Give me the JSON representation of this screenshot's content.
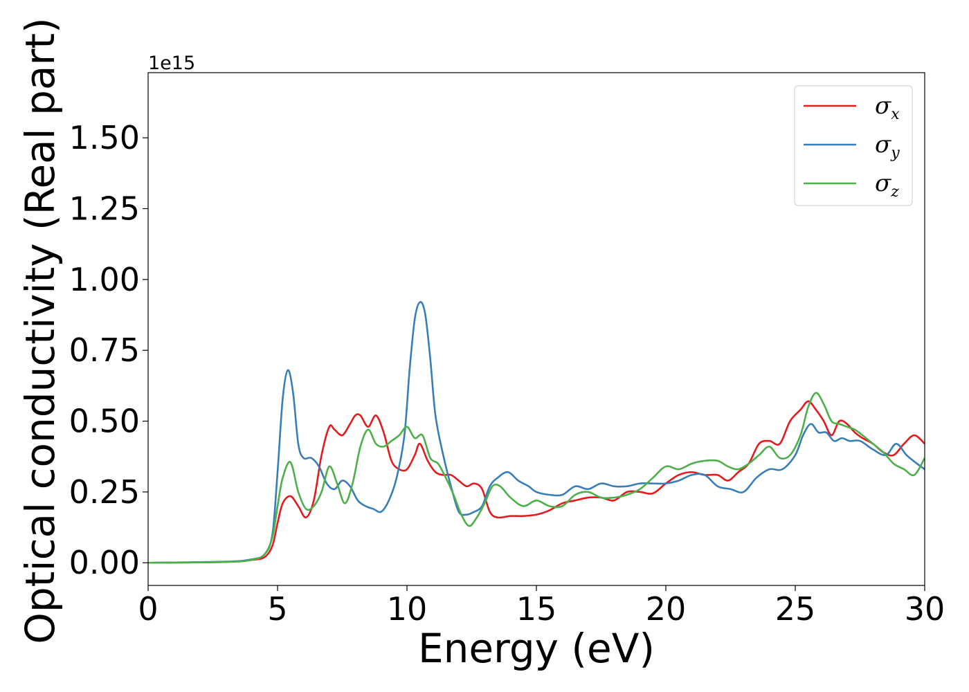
{
  "chart_data": {
    "type": "line",
    "xlabel": "Energy (eV)",
    "ylabel": "Optical conductivity (Real part)",
    "y_offset_text": "1e15",
    "xlim": [
      0,
      30
    ],
    "ylim": [
      -0.08,
      1.73
    ],
    "xticks": [
      0,
      5,
      10,
      15,
      20,
      25,
      30
    ],
    "xtick_labels": [
      "0",
      "5",
      "10",
      "15",
      "20",
      "25",
      "30"
    ],
    "yticks": [
      0.0,
      0.25,
      0.5,
      0.75,
      1.0,
      1.25,
      1.5
    ],
    "ytick_labels": [
      "0.00",
      "0.25",
      "0.50",
      "0.75",
      "1.00",
      "1.25",
      "1.50"
    ],
    "grid": false,
    "legend_position": "top-right",
    "series": [
      {
        "name": "σx",
        "symbol": "σ",
        "subscript": "x",
        "color": "#e41a1c",
        "x": [
          0,
          3,
          4,
          4.5,
          4.8,
          5.0,
          5.2,
          5.5,
          5.8,
          6.1,
          6.4,
          6.7,
          7.0,
          7.2,
          7.5,
          7.8,
          8.0,
          8.2,
          8.5,
          8.8,
          9.1,
          9.4,
          9.7,
          10.0,
          10.3,
          10.5,
          10.8,
          11.1,
          11.4,
          11.7,
          12.0,
          12.3,
          12.6,
          12.9,
          13.2,
          13.5,
          14.0,
          14.5,
          15.0,
          15.5,
          16.0,
          16.5,
          17.0,
          17.5,
          18.0,
          18.5,
          19.0,
          19.5,
          20.0,
          20.5,
          21.0,
          21.5,
          22.0,
          22.4,
          22.8,
          23.2,
          23.6,
          24.0,
          24.4,
          24.8,
          25.2,
          25.5,
          25.8,
          26.1,
          26.4,
          26.7,
          27.0,
          27.3,
          27.6,
          28.0,
          28.4,
          28.8,
          29.2,
          29.6,
          30.0
        ],
        "y": [
          0.0,
          0.003,
          0.01,
          0.02,
          0.06,
          0.14,
          0.21,
          0.235,
          0.2,
          0.16,
          0.22,
          0.38,
          0.48,
          0.47,
          0.45,
          0.49,
          0.52,
          0.52,
          0.48,
          0.52,
          0.46,
          0.36,
          0.33,
          0.33,
          0.38,
          0.42,
          0.36,
          0.32,
          0.31,
          0.31,
          0.29,
          0.27,
          0.28,
          0.26,
          0.18,
          0.16,
          0.165,
          0.165,
          0.17,
          0.185,
          0.21,
          0.22,
          0.23,
          0.23,
          0.22,
          0.25,
          0.25,
          0.245,
          0.28,
          0.31,
          0.32,
          0.31,
          0.31,
          0.29,
          0.32,
          0.35,
          0.42,
          0.43,
          0.42,
          0.5,
          0.54,
          0.57,
          0.54,
          0.5,
          0.45,
          0.5,
          0.49,
          0.46,
          0.44,
          0.42,
          0.39,
          0.38,
          0.42,
          0.45,
          0.42
        ]
      },
      {
        "name": "σy",
        "symbol": "σ",
        "subscript": "y",
        "color": "#377eb8",
        "x": [
          0,
          3,
          4,
          4.5,
          4.8,
          5.0,
          5.2,
          5.4,
          5.6,
          5.8,
          6.0,
          6.3,
          6.6,
          6.9,
          7.2,
          7.5,
          7.8,
          8.1,
          8.4,
          8.7,
          9.0,
          9.3,
          9.6,
          9.9,
          10.1,
          10.3,
          10.5,
          10.7,
          10.9,
          11.1,
          11.4,
          11.7,
          12.0,
          12.3,
          12.6,
          12.9,
          13.2,
          13.5,
          13.9,
          14.3,
          14.7,
          15.0,
          15.5,
          16.0,
          16.5,
          17.0,
          17.5,
          18.0,
          18.5,
          19.0,
          19.5,
          20.0,
          20.5,
          21.0,
          21.5,
          22.0,
          22.5,
          23.0,
          23.5,
          24.0,
          24.5,
          25.0,
          25.3,
          25.6,
          25.9,
          26.2,
          26.5,
          26.8,
          27.1,
          27.5,
          28.0,
          28.5,
          28.9,
          29.3,
          29.7,
          30.0
        ],
        "y": [
          0.0,
          0.004,
          0.012,
          0.03,
          0.1,
          0.32,
          0.58,
          0.68,
          0.6,
          0.42,
          0.37,
          0.37,
          0.34,
          0.28,
          0.26,
          0.29,
          0.27,
          0.22,
          0.2,
          0.19,
          0.18,
          0.22,
          0.3,
          0.45,
          0.68,
          0.86,
          0.92,
          0.88,
          0.72,
          0.52,
          0.38,
          0.27,
          0.18,
          0.17,
          0.18,
          0.2,
          0.27,
          0.3,
          0.32,
          0.29,
          0.27,
          0.25,
          0.24,
          0.24,
          0.27,
          0.26,
          0.28,
          0.27,
          0.27,
          0.28,
          0.28,
          0.28,
          0.29,
          0.31,
          0.31,
          0.27,
          0.26,
          0.25,
          0.3,
          0.33,
          0.33,
          0.38,
          0.45,
          0.49,
          0.46,
          0.46,
          0.43,
          0.44,
          0.43,
          0.43,
          0.4,
          0.38,
          0.42,
          0.38,
          0.35,
          0.33
        ]
      },
      {
        "name": "σz",
        "symbol": "σ",
        "subscript": "z",
        "color": "#4daf4a",
        "x": [
          0,
          3,
          4,
          4.5,
          4.8,
          5.0,
          5.2,
          5.5,
          5.8,
          6.1,
          6.4,
          6.7,
          7.0,
          7.3,
          7.6,
          7.9,
          8.2,
          8.5,
          8.8,
          9.1,
          9.4,
          9.7,
          10.0,
          10.3,
          10.6,
          10.9,
          11.2,
          11.5,
          11.8,
          12.1,
          12.4,
          12.7,
          13.0,
          13.3,
          13.6,
          14.0,
          14.5,
          15.0,
          15.5,
          16.0,
          16.5,
          17.0,
          17.5,
          18.0,
          18.5,
          19.0,
          19.5,
          20.0,
          20.5,
          21.0,
          21.5,
          22.0,
          22.4,
          22.8,
          23.2,
          23.6,
          24.0,
          24.4,
          24.8,
          25.2,
          25.5,
          25.8,
          26.1,
          26.4,
          26.7,
          27.0,
          27.3,
          27.6,
          28.0,
          28.4,
          28.8,
          29.2,
          29.6,
          30.0
        ],
        "y": [
          0.0,
          0.003,
          0.01,
          0.03,
          0.09,
          0.2,
          0.3,
          0.355,
          0.25,
          0.19,
          0.2,
          0.25,
          0.34,
          0.28,
          0.21,
          0.28,
          0.41,
          0.47,
          0.42,
          0.41,
          0.43,
          0.45,
          0.48,
          0.44,
          0.45,
          0.37,
          0.35,
          0.3,
          0.24,
          0.17,
          0.13,
          0.16,
          0.21,
          0.27,
          0.27,
          0.23,
          0.2,
          0.22,
          0.2,
          0.2,
          0.24,
          0.25,
          0.23,
          0.23,
          0.24,
          0.26,
          0.3,
          0.34,
          0.33,
          0.35,
          0.36,
          0.36,
          0.34,
          0.33,
          0.35,
          0.38,
          0.41,
          0.37,
          0.38,
          0.45,
          0.55,
          0.6,
          0.56,
          0.5,
          0.49,
          0.48,
          0.47,
          0.45,
          0.42,
          0.39,
          0.35,
          0.33,
          0.31,
          0.37
        ]
      }
    ]
  }
}
